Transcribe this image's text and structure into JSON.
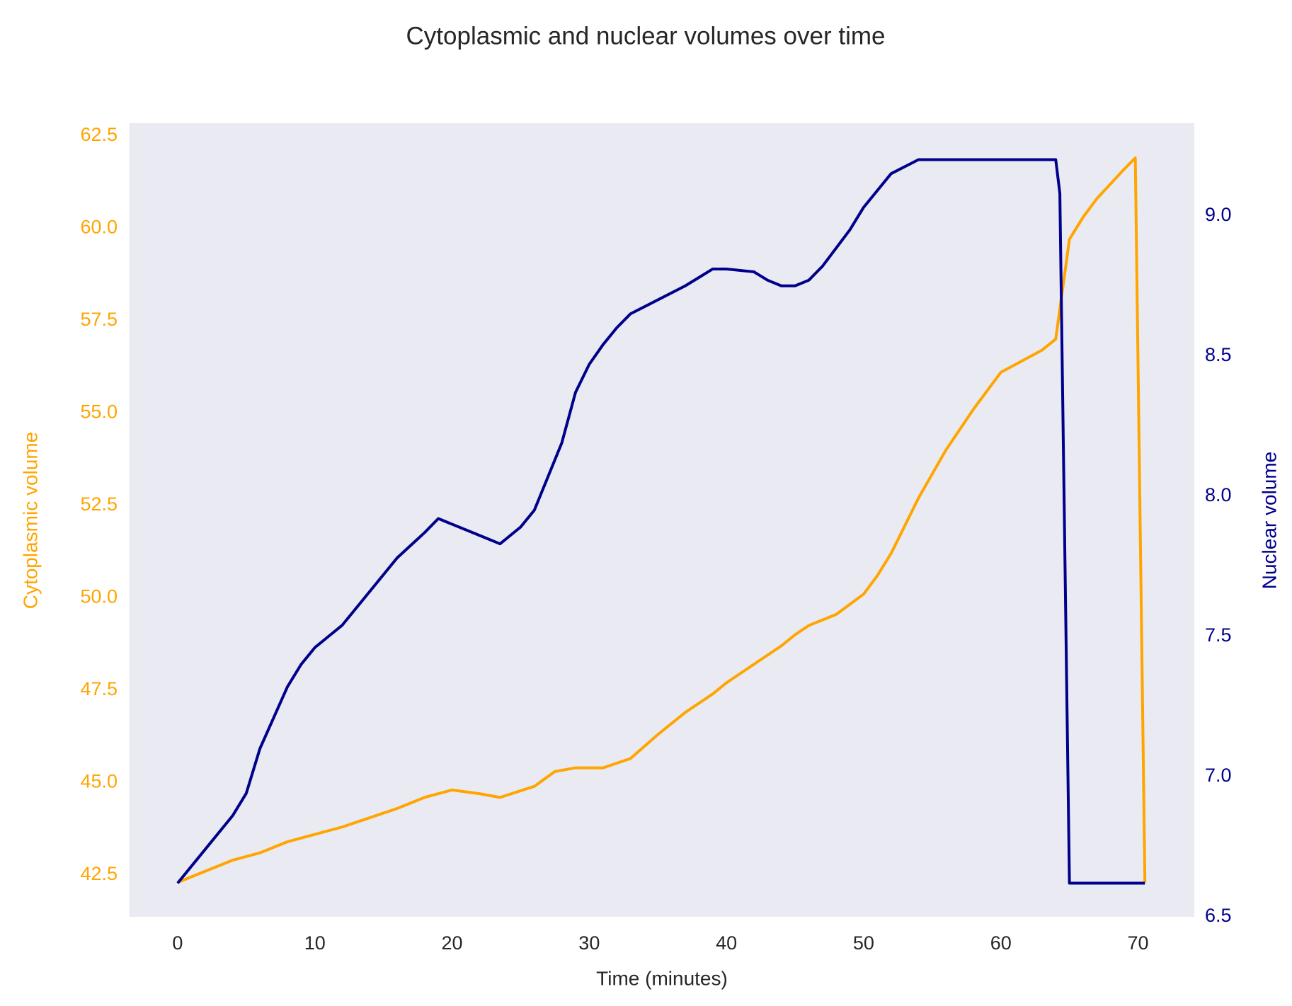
{
  "chart_data": {
    "type": "line",
    "title": "Cytoplasmic and nuclear volumes over time",
    "xlabel": "Time (minutes)",
    "ylabel": "Cytoplasmic volume",
    "y2label": "Nuclear volume",
    "xlim": [
      -3.53,
      74.1
    ],
    "xticks": [
      0,
      10,
      20,
      30,
      40,
      50,
      60,
      70
    ],
    "ylim": [
      41.37,
      62.84
    ],
    "yticks": [
      42.5,
      45.0,
      47.5,
      50.0,
      52.5,
      55.0,
      57.5,
      60.0,
      62.5
    ],
    "y2lim": [
      6.5,
      9.33
    ],
    "y2ticks": [
      6.5,
      7.0,
      7.5,
      8.0,
      8.5,
      9.0
    ],
    "grid": false,
    "background": "#eaeaf2",
    "series": [
      {
        "name": "Cytoplasmic volume",
        "color": "#ffa500",
        "axis": "y",
        "x": [
          0,
          2,
          4,
          6,
          8,
          10,
          12,
          14,
          16,
          18,
          20,
          22,
          23.5,
          26,
          27.5,
          29,
          31,
          33,
          35,
          37,
          39,
          40,
          42,
          44,
          45,
          46,
          48,
          50,
          51,
          52,
          54,
          56,
          58,
          60,
          61,
          63,
          64,
          65,
          66,
          67,
          69,
          69.8,
          70.5
        ],
        "values": [
          42.3,
          42.6,
          42.9,
          43.1,
          43.4,
          43.6,
          43.8,
          44.05,
          44.3,
          44.6,
          44.8,
          44.7,
          44.6,
          44.9,
          45.3,
          45.4,
          45.4,
          45.65,
          46.3,
          46.9,
          47.4,
          47.7,
          48.2,
          48.7,
          49.0,
          49.25,
          49.55,
          50.1,
          50.6,
          51.2,
          52.7,
          54.0,
          55.1,
          56.1,
          56.3,
          56.7,
          57.0,
          59.7,
          60.3,
          60.8,
          61.6,
          61.9,
          42.3
        ]
      },
      {
        "name": "Nuclear volume",
        "color": "#00008b",
        "axis": "y2",
        "x": [
          0,
          2,
          4,
          5,
          6,
          8,
          9,
          10,
          11,
          12,
          13,
          14,
          15,
          16,
          18,
          19,
          20,
          22,
          23.5,
          24,
          25,
          26,
          27,
          28,
          29,
          30,
          31,
          32,
          33,
          35,
          37,
          38,
          39,
          40,
          42,
          43,
          44,
          45,
          46,
          47,
          49,
          50,
          52,
          54,
          64,
          64.3,
          65,
          70.5
        ],
        "values": [
          6.62,
          6.74,
          6.86,
          6.94,
          7.1,
          7.32,
          7.4,
          7.46,
          7.5,
          7.54,
          7.6,
          7.66,
          7.72,
          7.78,
          7.87,
          7.92,
          7.9,
          7.86,
          7.83,
          7.85,
          7.89,
          7.95,
          8.07,
          8.19,
          8.37,
          8.47,
          8.54,
          8.6,
          8.65,
          8.7,
          8.75,
          8.78,
          8.81,
          8.81,
          8.8,
          8.77,
          8.75,
          8.75,
          8.77,
          8.82,
          8.95,
          9.03,
          9.15,
          9.2,
          9.2,
          9.08,
          6.62,
          6.62
        ]
      }
    ]
  }
}
